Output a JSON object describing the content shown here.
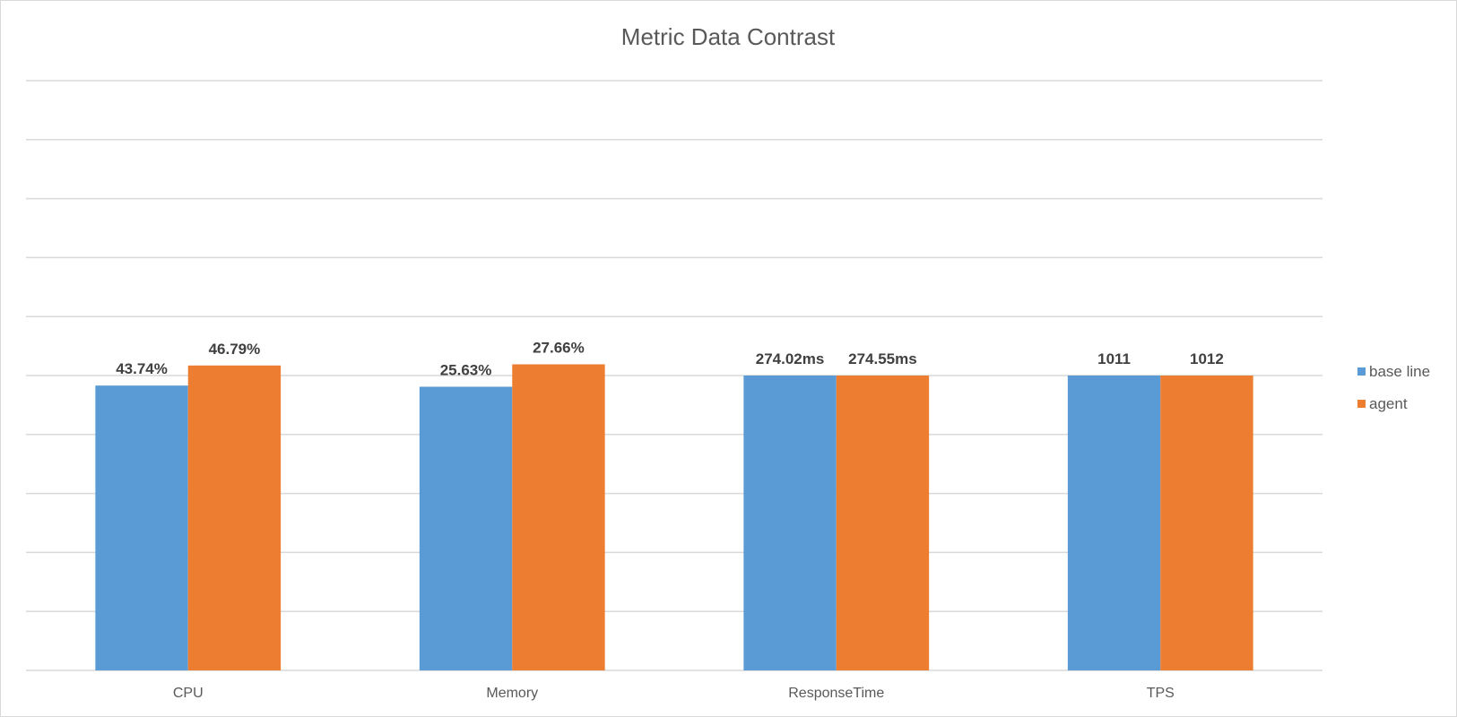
{
  "chart_data": {
    "type": "bar",
    "title": "Metric Data Contrast",
    "categories": [
      "CPU",
      "Memory",
      "ResponseTime",
      "TPS"
    ],
    "series": [
      {
        "name": "base line",
        "color": "#5b9bd5",
        "labels": [
          "43.74%",
          "25.63%",
          "274.02ms",
          "1011"
        ],
        "values": [
          4.83,
          4.81,
          5.0,
          5.0
        ]
      },
      {
        "name": "agent",
        "color": "#ed7d31",
        "labels": [
          "46.79%",
          "27.66%",
          "274.55ms",
          "1012"
        ],
        "values": [
          5.17,
          5.19,
          5.0,
          5.0
        ]
      }
    ],
    "ylim": [
      0,
      10
    ],
    "grid": true,
    "gridline_count": 10,
    "legend_position": "right",
    "xlabel": "",
    "ylabel": ""
  }
}
